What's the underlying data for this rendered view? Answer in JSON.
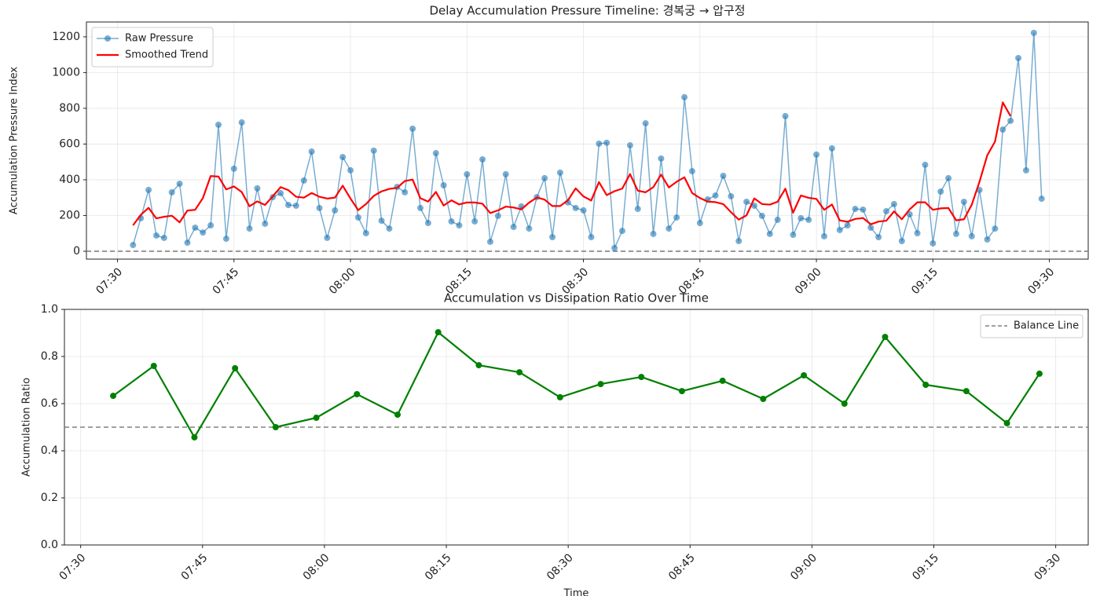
{
  "chart_data": [
    {
      "type": "line",
      "title": "Delay Accumulation Pressure Timeline: 경복궁 → 압구정",
      "ylabel": "Accumulation Pressure Index",
      "x": [
        "07:32",
        "07:33",
        "07:34",
        "07:35",
        "07:36",
        "07:37",
        "07:38",
        "07:39",
        "07:40",
        "07:41",
        "07:42",
        "07:43",
        "07:44",
        "07:45",
        "07:46",
        "07:47",
        "07:48",
        "07:49",
        "07:50",
        "07:51",
        "07:52",
        "07:53",
        "07:54",
        "07:55",
        "07:56",
        "07:57",
        "07:58",
        "07:59",
        "08:00",
        "08:01",
        "08:02",
        "08:03",
        "08:04",
        "08:05",
        "08:06",
        "08:07",
        "08:08",
        "08:09",
        "08:10",
        "08:11",
        "08:12",
        "08:13",
        "08:14",
        "08:15",
        "08:16",
        "08:17",
        "08:18",
        "08:19",
        "08:20",
        "08:21",
        "08:22",
        "08:23",
        "08:24",
        "08:25",
        "08:26",
        "08:27",
        "08:28",
        "08:29",
        "08:30",
        "08:31",
        "08:32",
        "08:33",
        "08:34",
        "08:35",
        "08:36",
        "08:37",
        "08:38",
        "08:39",
        "08:40",
        "08:41",
        "08:42",
        "08:43",
        "08:44",
        "08:45",
        "08:46",
        "08:47",
        "08:48",
        "08:49",
        "08:50",
        "08:51",
        "08:52",
        "08:53",
        "08:54",
        "08:55",
        "08:56",
        "08:57",
        "08:58",
        "08:59",
        "09:00",
        "09:01",
        "09:02",
        "09:03",
        "09:04",
        "09:05",
        "09:06",
        "09:07",
        "09:08",
        "09:09",
        "09:10",
        "09:11",
        "09:12",
        "09:13",
        "09:14",
        "09:15",
        "09:16",
        "09:17",
        "09:18",
        "09:19",
        "09:20",
        "09:21",
        "09:22",
        "09:23",
        "09:24",
        "09:25",
        "09:26",
        "09:27",
        "09:28",
        "09:29"
      ],
      "series": [
        {
          "name": "Raw Pressure",
          "color": "#1f77b4",
          "alpha": 0.6,
          "marker": true,
          "width": 1.5,
          "values": [
            35,
            185,
            343,
            88,
            75,
            330,
            378,
            48,
            132,
            105,
            145,
            708,
            70,
            462,
            721,
            127,
            352,
            154,
            303,
            325,
            259,
            255,
            396,
            558,
            242,
            75,
            229,
            527,
            453,
            189,
            101,
            563,
            171,
            127,
            360,
            330,
            686,
            242,
            158,
            549,
            369,
            167,
            145,
            431,
            167,
            514,
            53,
            198,
            431,
            136,
            251,
            127,
            303,
            409,
            79,
            440,
            273,
            242,
            229,
            79,
            602,
            607,
            18,
            114,
            593,
            237,
            716,
            97,
            519,
            127,
            189,
            862,
            448,
            158,
            290,
            312,
            422,
            308,
            57,
            277,
            255,
            198,
            97,
            176,
            756,
            92,
            185,
            176,
            541,
            84,
            576,
            119,
            145,
            237,
            233,
            132,
            79,
            224,
            264,
            57,
            207,
            101,
            484,
            44,
            334,
            409,
            97,
            277,
            84,
            343,
            66,
            127,
            681,
            730,
            1081,
            453,
            1222,
            294
          ]
        },
        {
          "name": "Smoothed Trend",
          "color": "#ff0000",
          "alpha": 1,
          "marker": false,
          "width": 2.2,
          "values": [
            145,
            204,
            243,
            184,
            193,
            199,
            162,
            228,
            232,
            298,
            421,
            418,
            346,
            363,
            331,
            252,
            279,
            259,
            308,
            359,
            342,
            305,
            300,
            326,
            305,
            295,
            300,
            367,
            295,
            230,
            264,
            310,
            335,
            349,
            355,
            393,
            401,
            297,
            278,
            332,
            256,
            285,
            262,
            273,
            273,
            266,
            214,
            229,
            250,
            245,
            234,
            272,
            301,
            289,
            253,
            253,
            285,
            352,
            307,
            284,
            387,
            314,
            336,
            351,
            432,
            339,
            330,
            359,
            429,
            357,
            389,
            414,
            326,
            298,
            278,
            275,
            264,
            219,
            177,
            201,
            296,
            264,
            261,
            277,
            350,
            216,
            312,
            299,
            293,
            232,
            262,
            173,
            165,
            181,
            186,
            151,
            166,
            171,
            223,
            179,
            234,
            274,
            274,
            232,
            240,
            242,
            173,
            179,
            260,
            389,
            537,
            614,
            833,
            756,
            null,
            null,
            null,
            null
          ]
        }
      ],
      "hlines": [
        {
          "value": 0,
          "color": "#808080"
        }
      ],
      "xlim": [
        "07:26",
        "09:35"
      ],
      "xticks": [
        "07:30",
        "07:45",
        "08:00",
        "08:15",
        "08:30",
        "08:45",
        "09:00",
        "09:15",
        "09:30"
      ],
      "ylim": [
        -44,
        1283
      ],
      "yticks": [
        0,
        200,
        400,
        600,
        800,
        1000,
        1200
      ],
      "grid": true,
      "legend": "upper left"
    },
    {
      "type": "line",
      "title": "Accumulation vs Dissipation Ratio Over Time",
      "xlabel": "Time",
      "ylabel": "Accumulation Ratio",
      "x": [
        "07:34",
        "07:39",
        "07:44",
        "07:49",
        "07:54",
        "07:59",
        "08:04",
        "08:09",
        "08:14",
        "08:19",
        "08:24",
        "08:29",
        "08:34",
        "08:39",
        "08:44",
        "08:49",
        "08:54",
        "08:59",
        "09:04",
        "09:09",
        "09:14",
        "09:19",
        "09:24",
        "09:28"
      ],
      "series": [
        {
          "color": "#008000",
          "alpha": 1,
          "marker": true,
          "width": 2.2,
          "values": [
            0.633,
            0.76,
            0.457,
            0.75,
            0.5,
            0.54,
            0.64,
            0.553,
            0.903,
            0.763,
            0.733,
            0.627,
            0.683,
            0.713,
            0.653,
            0.697,
            0.62,
            0.72,
            0.6,
            0.883,
            0.68,
            0.653,
            0.517,
            0.727
          ]
        }
      ],
      "hlines": [
        {
          "value": 0.5,
          "color": "#808080",
          "label": "Balance Line"
        }
      ],
      "xlim": [
        "07:28",
        "09:34"
      ],
      "xticks": [
        "07:30",
        "07:45",
        "08:00",
        "08:15",
        "08:30",
        "08:45",
        "09:00",
        "09:15",
        "09:30"
      ],
      "ylim": [
        0,
        1
      ],
      "yticks": [
        {
          "value": 0,
          "label": "0.0"
        },
        {
          "value": 0.2,
          "label": "0.2"
        },
        {
          "value": 0.4,
          "label": "0.4"
        },
        {
          "value": 0.6,
          "label": "0.6"
        },
        {
          "value": 0.8,
          "label": "0.8"
        },
        {
          "value": 1,
          "label": "1.0"
        }
      ],
      "grid": true,
      "legend": "upper right"
    }
  ]
}
